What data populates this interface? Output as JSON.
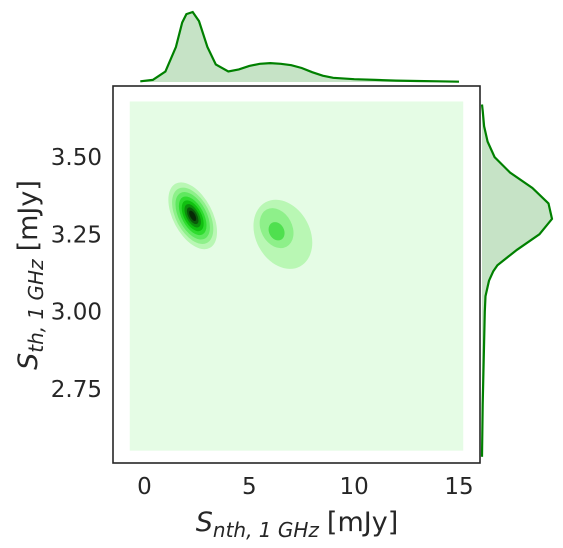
{
  "chart_data": {
    "type": "jointplot-kde",
    "x": {
      "label_symbol": "S",
      "label_subscript": "nth, 1 GHz",
      "label_unit": "[mJy]",
      "ticks": [
        0,
        5,
        10,
        15
      ],
      "tick_labels": [
        "0",
        "5",
        "10",
        "15"
      ],
      "xlim": [
        -1.5,
        16
      ]
    },
    "y": {
      "label_symbol": "S",
      "label_subscript": "th, 1 GHz",
      "label_unit": "[mJy]",
      "ticks": [
        2.75,
        3.0,
        3.25,
        3.5
      ],
      "tick_labels": [
        "2.75",
        "3.00",
        "3.25",
        "3.50"
      ],
      "ylim": [
        2.51,
        3.73
      ]
    },
    "joint": {
      "fill_rect": {
        "x": [
          -0.7,
          15.2
        ],
        "y": [
          2.55,
          3.68
        ]
      },
      "background_color": "#e5fce5",
      "levels": [
        {
          "cx": 2.3,
          "cy": 3.31,
          "rx": 1.7,
          "ry": 0.19,
          "color": "#b9f7b4"
        },
        {
          "cx": 6.6,
          "cy": 3.25,
          "rx": 2.35,
          "ry": 0.19,
          "color": "#b9f7b4"
        },
        {
          "cx": 2.3,
          "cy": 3.31,
          "rx": 1.45,
          "ry": 0.16,
          "color": "#8ef08a"
        },
        {
          "cx": 6.3,
          "cy": 3.27,
          "rx": 1.35,
          "ry": 0.11,
          "color": "#8ef08a"
        },
        {
          "cx": 2.3,
          "cy": 3.31,
          "rx": 1.2,
          "ry": 0.135,
          "color": "#5fe85f"
        },
        {
          "cx": 6.3,
          "cy": 3.26,
          "rx": 0.65,
          "ry": 0.05,
          "color": "#4fe04f"
        },
        {
          "cx": 2.3,
          "cy": 3.31,
          "rx": 0.95,
          "ry": 0.11,
          "color": "#2fdb2f"
        },
        {
          "cx": 2.3,
          "cy": 3.31,
          "rx": 0.75,
          "ry": 0.088,
          "color": "#10c010"
        },
        {
          "cx": 2.3,
          "cy": 3.31,
          "rx": 0.55,
          "ry": 0.067,
          "color": "#0c8f0c"
        },
        {
          "cx": 2.3,
          "cy": 3.31,
          "rx": 0.38,
          "ry": 0.048,
          "color": "#0a5a0a"
        },
        {
          "cx": 2.3,
          "cy": 3.31,
          "rx": 0.22,
          "ry": 0.03,
          "color": "#062a06"
        }
      ]
    },
    "marginal_x": {
      "x": [
        -0.2,
        0.4,
        1.0,
        1.5,
        1.8,
        2.0,
        2.3,
        2.6,
        3.0,
        3.4,
        4.0,
        4.5,
        5.0,
        5.5,
        6.0,
        6.5,
        7.0,
        7.5,
        8.0,
        8.5,
        9.0,
        10.0,
        11.0,
        12.0,
        13.0,
        14.0,
        15.0
      ],
      "density": [
        0.01,
        0.03,
        0.15,
        0.5,
        0.85,
        0.97,
        1.0,
        0.87,
        0.5,
        0.25,
        0.15,
        0.18,
        0.23,
        0.26,
        0.27,
        0.26,
        0.24,
        0.2,
        0.14,
        0.09,
        0.06,
        0.04,
        0.03,
        0.02,
        0.015,
        0.01,
        0.005
      ]
    },
    "marginal_y": {
      "y": [
        2.53,
        2.7,
        2.9,
        3.0,
        3.05,
        3.08,
        3.1,
        3.13,
        3.15,
        3.2,
        3.25,
        3.3,
        3.35,
        3.4,
        3.45,
        3.5,
        3.55,
        3.6,
        3.65,
        3.67
      ],
      "density": [
        0.0,
        0.01,
        0.03,
        0.04,
        0.05,
        0.08,
        0.1,
        0.16,
        0.22,
        0.5,
        0.82,
        1.0,
        0.95,
        0.72,
        0.4,
        0.18,
        0.08,
        0.03,
        0.01,
        0.0
      ]
    },
    "colors": {
      "line": "#008000",
      "fill": "#c6e3c6",
      "frame": "#262626"
    }
  }
}
